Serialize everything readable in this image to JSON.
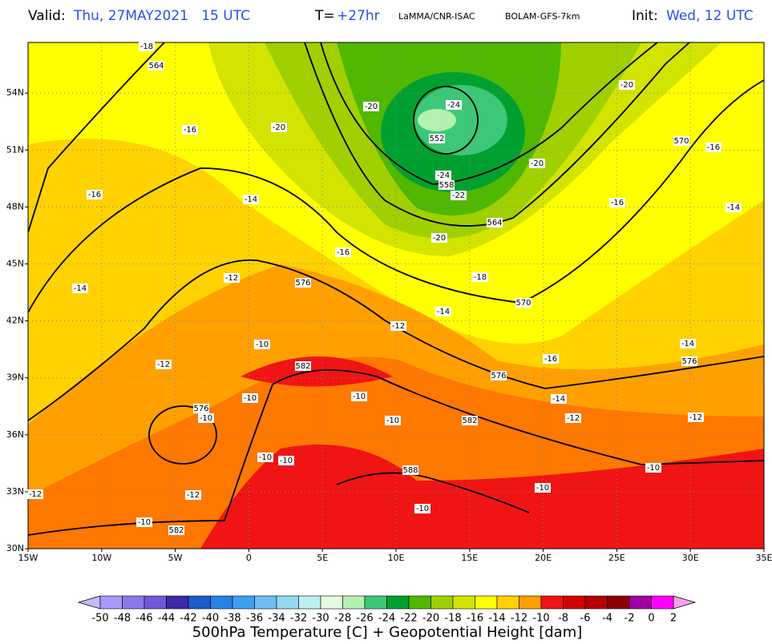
{
  "header": {
    "valid_label": "Valid:",
    "valid_time": "Thu, 27MAY2021   15 UTC",
    "lead_label": "T=",
    "lead_time": "+27hr",
    "source": "LaMMA/CNR-ISAC",
    "model": "BOLAM-GFS-7km",
    "init_label": "Init:",
    "init_time": "Wed, 12 UTC"
  },
  "map": {
    "lon_labels": [
      "15W",
      "10W",
      "5W",
      "0",
      "5E",
      "10E",
      "15E",
      "20E",
      "25E",
      "30E",
      "35E"
    ],
    "lat_labels": [
      "30N",
      "33N",
      "36N",
      "39N",
      "42N",
      "45N",
      "48N",
      "51N",
      "54N"
    ],
    "contour_labels": [
      "-18",
      "564",
      "-16",
      "-20",
      "-20",
      "-24",
      "552",
      "-20",
      "-20",
      "570",
      "-16",
      "-16",
      "-14",
      "-24",
      "558",
      "-22",
      "-16",
      "-14",
      "564",
      "-20",
      "-16",
      "-12",
      "576",
      "-18",
      "-14",
      "570",
      "-14",
      "-12",
      "-10",
      "-14",
      "-12",
      "582",
      "-16",
      "576",
      "576",
      "-10",
      "-10",
      "-14",
      "576",
      "-10",
      "-12",
      "582",
      "-12",
      "-10",
      "-10",
      "-10",
      "-10",
      "588",
      "-12",
      "-12",
      "-10",
      "-10",
      "-10",
      "582"
    ]
  },
  "colorbar": {
    "ticks": [
      -50,
      -48,
      -46,
      -44,
      -42,
      -40,
      -38,
      -36,
      -34,
      -32,
      -30,
      -28,
      -26,
      -24,
      -22,
      -20,
      -18,
      -16,
      -14,
      -12,
      -10,
      -8,
      -6,
      -4,
      -2,
      0,
      2
    ],
    "colors": [
      "#a898f8",
      "#8c78ea",
      "#7058d8",
      "#3c28a8",
      "#1e5ac8",
      "#2882e6",
      "#3ca0f0",
      "#6ebef4",
      "#96d8f0",
      "#bef0f0",
      "#e4fae0",
      "#b4f0b0",
      "#3cc878",
      "#00a030",
      "#50b800",
      "#a0d000",
      "#d2e400",
      "#ffff00",
      "#ffd200",
      "#ffa000",
      "#f01414",
      "#d20000",
      "#b40000",
      "#8c0000",
      "#a000a0",
      "#ff00ff"
    ],
    "title": "500hPa Temperature [C] + Geopotential Height [dam]"
  }
}
